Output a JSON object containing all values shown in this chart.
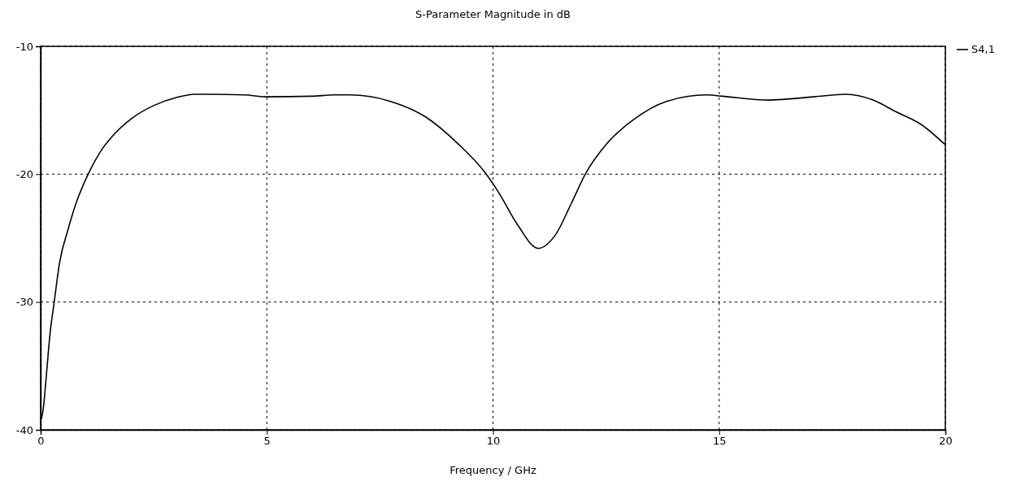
{
  "chart_data": {
    "type": "line",
    "title": "S-Parameter Magnitude in dB",
    "xlabel": "Frequency / GHz",
    "xlim": [
      0,
      20
    ],
    "xticks": [
      0,
      5,
      10,
      15,
      20
    ],
    "ylim": [
      -40,
      -10
    ],
    "yticks": [
      -40,
      -30,
      -20,
      -10
    ],
    "grid": true,
    "legend": "top right",
    "line_style": "solid",
    "series": [
      {
        "name": "S4,1",
        "color": "#000000",
        "x": [
          0.02,
          0.06,
          0.12,
          0.21,
          0.3,
          0.42,
          0.6,
          0.78,
          1.05,
          1.31,
          1.62,
          2.03,
          2.52,
          3.0,
          3.41,
          4.5,
          5.0,
          6.0,
          6.5,
          6.83,
          7.73,
          8.5,
          9.22,
          9.83,
          10.12,
          10.55,
          11.0,
          11.37,
          11.73,
          12.04,
          12.52,
          13.12,
          13.84,
          14.73,
          15.06,
          16.1,
          17.1,
          17.8,
          18.4,
          18.9,
          19.46,
          20.0
        ],
        "values": [
          -39.1,
          -38.3,
          -36.0,
          -32.4,
          -30.0,
          -26.9,
          -24.4,
          -22.3,
          -20.0,
          -18.3,
          -16.9,
          -15.6,
          -14.6,
          -14.0,
          -13.75,
          -13.8,
          -13.95,
          -13.9,
          -13.8,
          -13.8,
          -14.3,
          -15.5,
          -17.6,
          -19.9,
          -21.4,
          -24.0,
          -25.8,
          -24.8,
          -22.3,
          -20.0,
          -17.6,
          -15.7,
          -14.3,
          -13.8,
          -13.9,
          -14.2,
          -13.95,
          -13.75,
          -14.2,
          -15.1,
          -16.1,
          -17.7
        ]
      }
    ]
  }
}
